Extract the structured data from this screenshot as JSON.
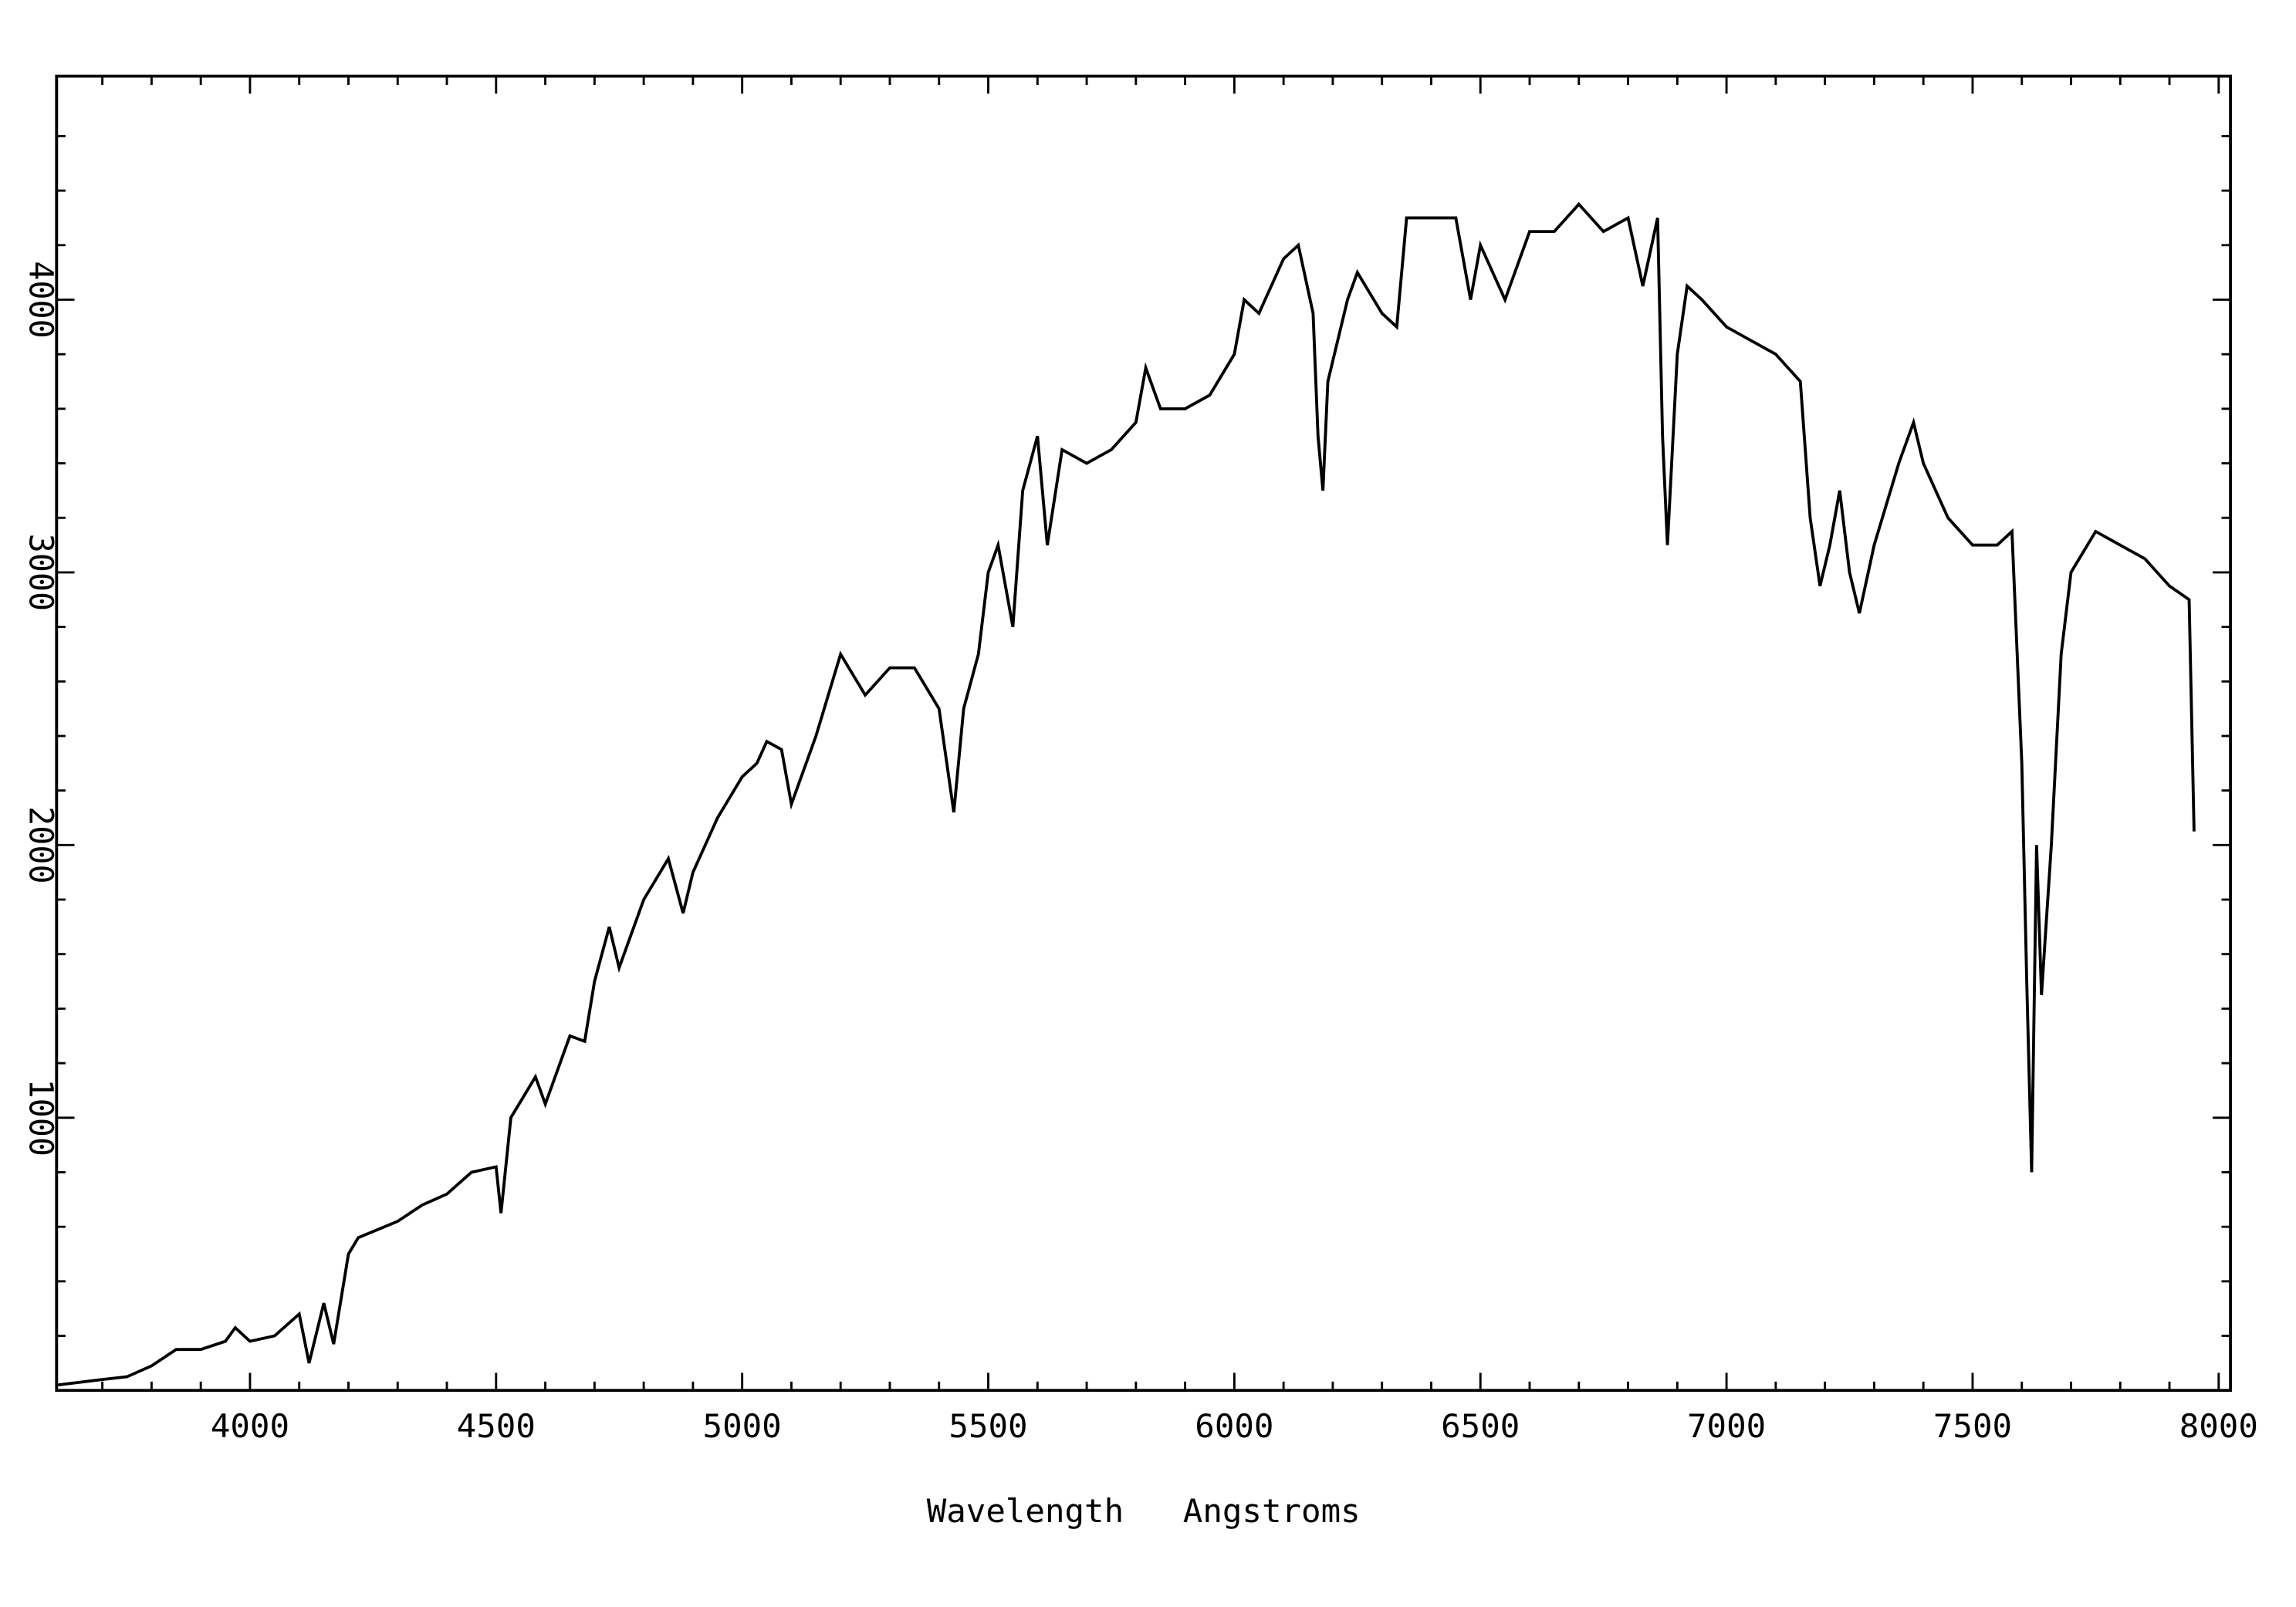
{
  "chart_data": {
    "type": "line",
    "xlabel": "Wavelength   Angstroms",
    "x": [
      3610,
      3700,
      3750,
      3800,
      3850,
      3900,
      3950,
      3970,
      4000,
      4050,
      4100,
      4120,
      4150,
      4170,
      4200,
      4220,
      4300,
      4350,
      4400,
      4450,
      4500,
      4510,
      4530,
      4580,
      4600,
      4650,
      4680,
      4700,
      4730,
      4750,
      4800,
      4850,
      4880,
      4900,
      4950,
      5000,
      5030,
      5050,
      5080,
      5100,
      5150,
      5200,
      5250,
      5300,
      5350,
      5400,
      5430,
      5450,
      5480,
      5500,
      5520,
      5550,
      5570,
      5600,
      5620,
      5650,
      5700,
      5750,
      5800,
      5820,
      5850,
      5900,
      5950,
      6000,
      6020,
      6050,
      6100,
      6130,
      6160,
      6170,
      6180,
      6190,
      6230,
      6250,
      6300,
      6330,
      6350,
      6400,
      6450,
      6480,
      6500,
      6550,
      6600,
      6650,
      6700,
      6750,
      6800,
      6830,
      6860,
      6870,
      6880,
      6900,
      6920,
      6950,
      7000,
      7050,
      7100,
      7150,
      7170,
      7190,
      7210,
      7230,
      7250,
      7270,
      7300,
      7350,
      7380,
      7400,
      7450,
      7500,
      7550,
      7580,
      7600,
      7610,
      7620,
      7630,
      7640,
      7660,
      7680,
      7700,
      7750,
      7800,
      7850,
      7900,
      7940,
      7950
    ],
    "values": [
      20,
      40,
      50,
      90,
      150,
      150,
      180,
      230,
      180,
      200,
      280,
      100,
      320,
      170,
      500,
      560,
      620,
      680,
      720,
      800,
      820,
      650,
      1000,
      1150,
      1050,
      1300,
      1280,
      1500,
      1700,
      1550,
      1800,
      1950,
      1750,
      1900,
      2100,
      2250,
      2300,
      2380,
      2350,
      2150,
      2400,
      2700,
      2550,
      2650,
      2650,
      2500,
      2120,
      2500,
      2700,
      3000,
      3100,
      2800,
      3300,
      3500,
      3100,
      3450,
      3400,
      3450,
      3550,
      3750,
      3600,
      3600,
      3650,
      3800,
      4000,
      3950,
      4150,
      4200,
      3950,
      3500,
      3300,
      3700,
      4000,
      4100,
      3950,
      3900,
      4300,
      4300,
      4300,
      4000,
      4200,
      4000,
      4250,
      4250,
      4350,
      4250,
      4300,
      4050,
      4300,
      3500,
      3100,
      3800,
      4050,
      4000,
      3900,
      3850,
      3800,
      3700,
      3200,
      2950,
      3100,
      3300,
      3000,
      2850,
      3100,
      3400,
      3550,
      3400,
      3200,
      3100,
      3100,
      3150,
      2300,
      1500,
      800,
      2000,
      1450,
      2000,
      2700,
      3000,
      3150,
      3100,
      3050,
      2950,
      2900,
      2050
    ],
    "color": "#000000",
    "xlim": [
      3607,
      8024
    ],
    "ylim": [
      0,
      4820
    ],
    "xticks": [
      4000,
      4500,
      5000,
      5500,
      6000,
      6500,
      7000,
      7500,
      8000
    ],
    "yticks": [
      1000,
      2000,
      3000,
      4000
    ],
    "xminorticks": [
      3700,
      3800,
      3900,
      4100,
      4200,
      4300,
      4400,
      4600,
      4700,
      4800,
      4900,
      5100,
      5200,
      5300,
      5400,
      5600,
      5700,
      5800,
      5900,
      6100,
      6200,
      6300,
      6400,
      6600,
      6700,
      6800,
      6900,
      7100,
      7200,
      7300,
      7400,
      7600,
      7700,
      7800,
      7900
    ],
    "yminorticks": [
      200,
      400,
      600,
      800,
      1200,
      1400,
      1600,
      1800,
      2200,
      2400,
      2600,
      2800,
      3200,
      3400,
      3600,
      3800,
      4200,
      4400,
      4600
    ]
  }
}
